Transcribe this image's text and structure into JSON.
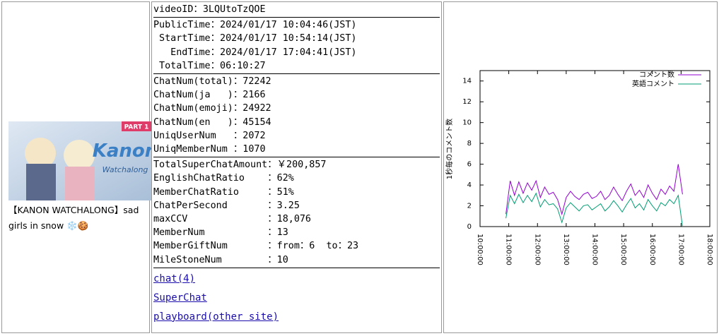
{
  "video": {
    "title": "【KANON WATCHALONG】sad girls in snow ❄️🍪",
    "thumbnail": {
      "badge": "PART 1",
      "logo": "Kanon",
      "sub": "Watchalong"
    }
  },
  "info": {
    "groups": [
      [
        "videoID：3LQUtoTzQOE"
      ],
      [
        "PublicTime：2024/01/17 10:04:46(JST)",
        " StartTime：2024/01/17 10:54:14(JST)",
        "   EndTime：2024/01/17 17:04:41(JST)",
        " TotalTime：06:10:27"
      ],
      [
        "ChatNum(total)：72242",
        "ChatNum(ja   )：2166",
        "ChatNum(emoji)：24922",
        "ChatNum(en   )：45154",
        "UniqUserNum   ：2072",
        "UniqMemberNum ：1070"
      ],
      [
        "TotalSuperChatAmount：￥200,857",
        "EnglishChatRatio    ：62%",
        "MemberChatRatio     ：51%",
        "ChatPerSecond       ：3.25",
        "maxCCV              ：18,076",
        "MemberNum           ：13",
        "MemberGiftNum       ：from：6  to：23",
        "MileStoneNum        ：10"
      ]
    ]
  },
  "links": [
    "chat(4)",
    "SuperChat",
    "playboard(other site)"
  ],
  "chart_data": {
    "type": "line",
    "ylabel": "1秒毎のコメント数",
    "x": [
      10.9,
      11.05,
      11.2,
      11.35,
      11.5,
      11.65,
      11.8,
      11.95,
      12.1,
      12.25,
      12.4,
      12.55,
      12.7,
      12.85,
      13.0,
      13.15,
      13.3,
      13.45,
      13.6,
      13.75,
      13.9,
      14.05,
      14.2,
      14.35,
      14.5,
      14.65,
      14.8,
      14.95,
      15.1,
      15.25,
      15.4,
      15.55,
      15.7,
      15.85,
      16.0,
      16.15,
      16.3,
      16.45,
      16.6,
      16.75,
      16.9,
      17.05
    ],
    "series": [
      {
        "name": "コメント数",
        "color": "#9400d3",
        "values": [
          1.2,
          4.4,
          3.0,
          4.3,
          3.2,
          4.2,
          3.5,
          4.4,
          2.8,
          3.8,
          3.1,
          3.3,
          2.6,
          1.2,
          2.8,
          3.4,
          2.9,
          2.6,
          3.1,
          3.3,
          2.7,
          2.9,
          3.4,
          2.6,
          3.0,
          3.8,
          3.1,
          2.5,
          3.4,
          4.1,
          3.0,
          3.5,
          2.8,
          4.0,
          3.2,
          2.6,
          3.6,
          3.1,
          3.9,
          3.4,
          6.0,
          3.1
        ]
      },
      {
        "name": "英語コメント",
        "color": "#009e73",
        "values": [
          0.8,
          3.0,
          2.2,
          3.1,
          2.3,
          3.0,
          2.4,
          3.2,
          1.9,
          2.6,
          2.1,
          2.2,
          1.7,
          0.4,
          1.8,
          2.3,
          1.9,
          1.5,
          2.0,
          2.1,
          1.6,
          1.9,
          2.2,
          1.5,
          1.9,
          2.5,
          2.0,
          1.4,
          2.1,
          2.7,
          1.8,
          2.2,
          1.6,
          2.6,
          2.0,
          1.5,
          2.3,
          2.0,
          2.6,
          2.2,
          3.0,
          0
        ]
      }
    ],
    "xlim": [
      10,
      18
    ],
    "xticks": [
      {
        "value": 10,
        "label": "10:00:00"
      },
      {
        "value": 11,
        "label": "11:00:00"
      },
      {
        "value": 12,
        "label": "12:00:00"
      },
      {
        "value": 13,
        "label": "13:00:00"
      },
      {
        "value": 14,
        "label": "14:00:00"
      },
      {
        "value": 15,
        "label": "15:00:00"
      },
      {
        "value": 16,
        "label": "16:00:00"
      },
      {
        "value": 17,
        "label": "17:00:00"
      },
      {
        "value": 18,
        "label": "18:00:00"
      }
    ],
    "ylim": [
      0,
      15
    ],
    "yticks": [
      0,
      2,
      4,
      6,
      8,
      10,
      12,
      14
    ],
    "grid": false,
    "legend": "upper right"
  }
}
